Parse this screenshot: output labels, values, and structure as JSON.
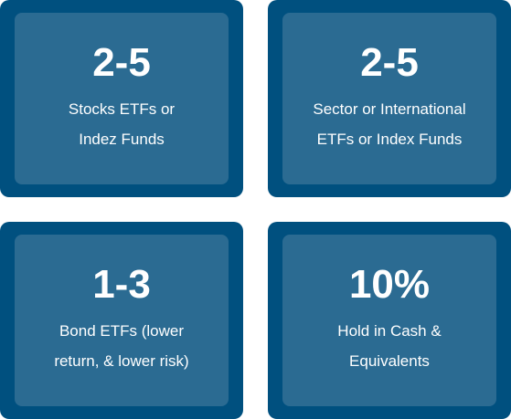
{
  "cards": [
    {
      "value": "2-5",
      "line1": "Stocks ETFs or",
      "line2": "Indez Funds"
    },
    {
      "value": "2-5",
      "line1": "Sector or International",
      "line2": "ETFs or Index Funds"
    },
    {
      "value": "1-3",
      "line1": "Bond ETFs (lower",
      "line2": "return, & lower risk)"
    },
    {
      "value": "10%",
      "line1": "Hold in Cash &",
      "line2": "Equivalents"
    }
  ],
  "colors": {
    "card_border": "#00507f",
    "card_fill": "#2b6b92",
    "text": "#ffffff"
  }
}
